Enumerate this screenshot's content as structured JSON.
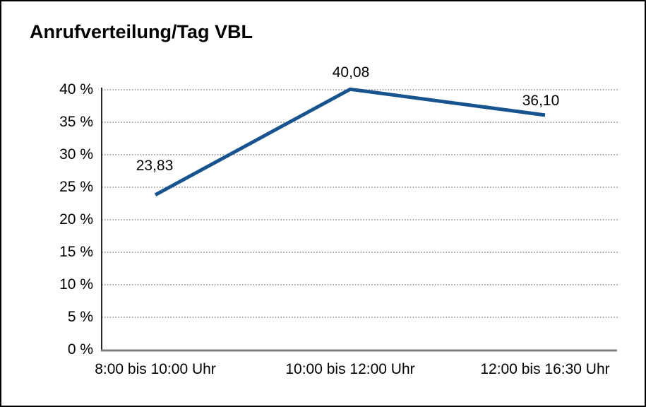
{
  "window": {
    "background_color": "#ffffff",
    "border_color": "#000000"
  },
  "chart_data": {
    "type": "line",
    "title": "Anrufverteilung/Tag VBL",
    "categories": [
      "8:00 bis 10:00 Uhr",
      "10:00 bis 12:00 Uhr",
      "12:00 bis 16:30 Uhr"
    ],
    "series": [
      {
        "name": "Anrufverteilung/Tag VBL",
        "values": [
          23.83,
          40.08,
          36.1
        ]
      }
    ],
    "data_labels": [
      "23,83",
      "40,08",
      "36,10"
    ],
    "xlabel": "",
    "ylabel": "",
    "ylim": [
      0,
      40
    ],
    "ytick_step": 5,
    "ytick_labels": [
      "0 %",
      "5 %",
      "10 %",
      "15 %",
      "20 %",
      "25 %",
      "30 %",
      "35 %",
      "40 %"
    ],
    "grid": "horizontal-dotted",
    "legend_position": "none",
    "line_color": "#17538f",
    "gridline_color": "#6b6b6b",
    "axis_color": "#000000",
    "baseline_color": "#7f7f7f"
  }
}
